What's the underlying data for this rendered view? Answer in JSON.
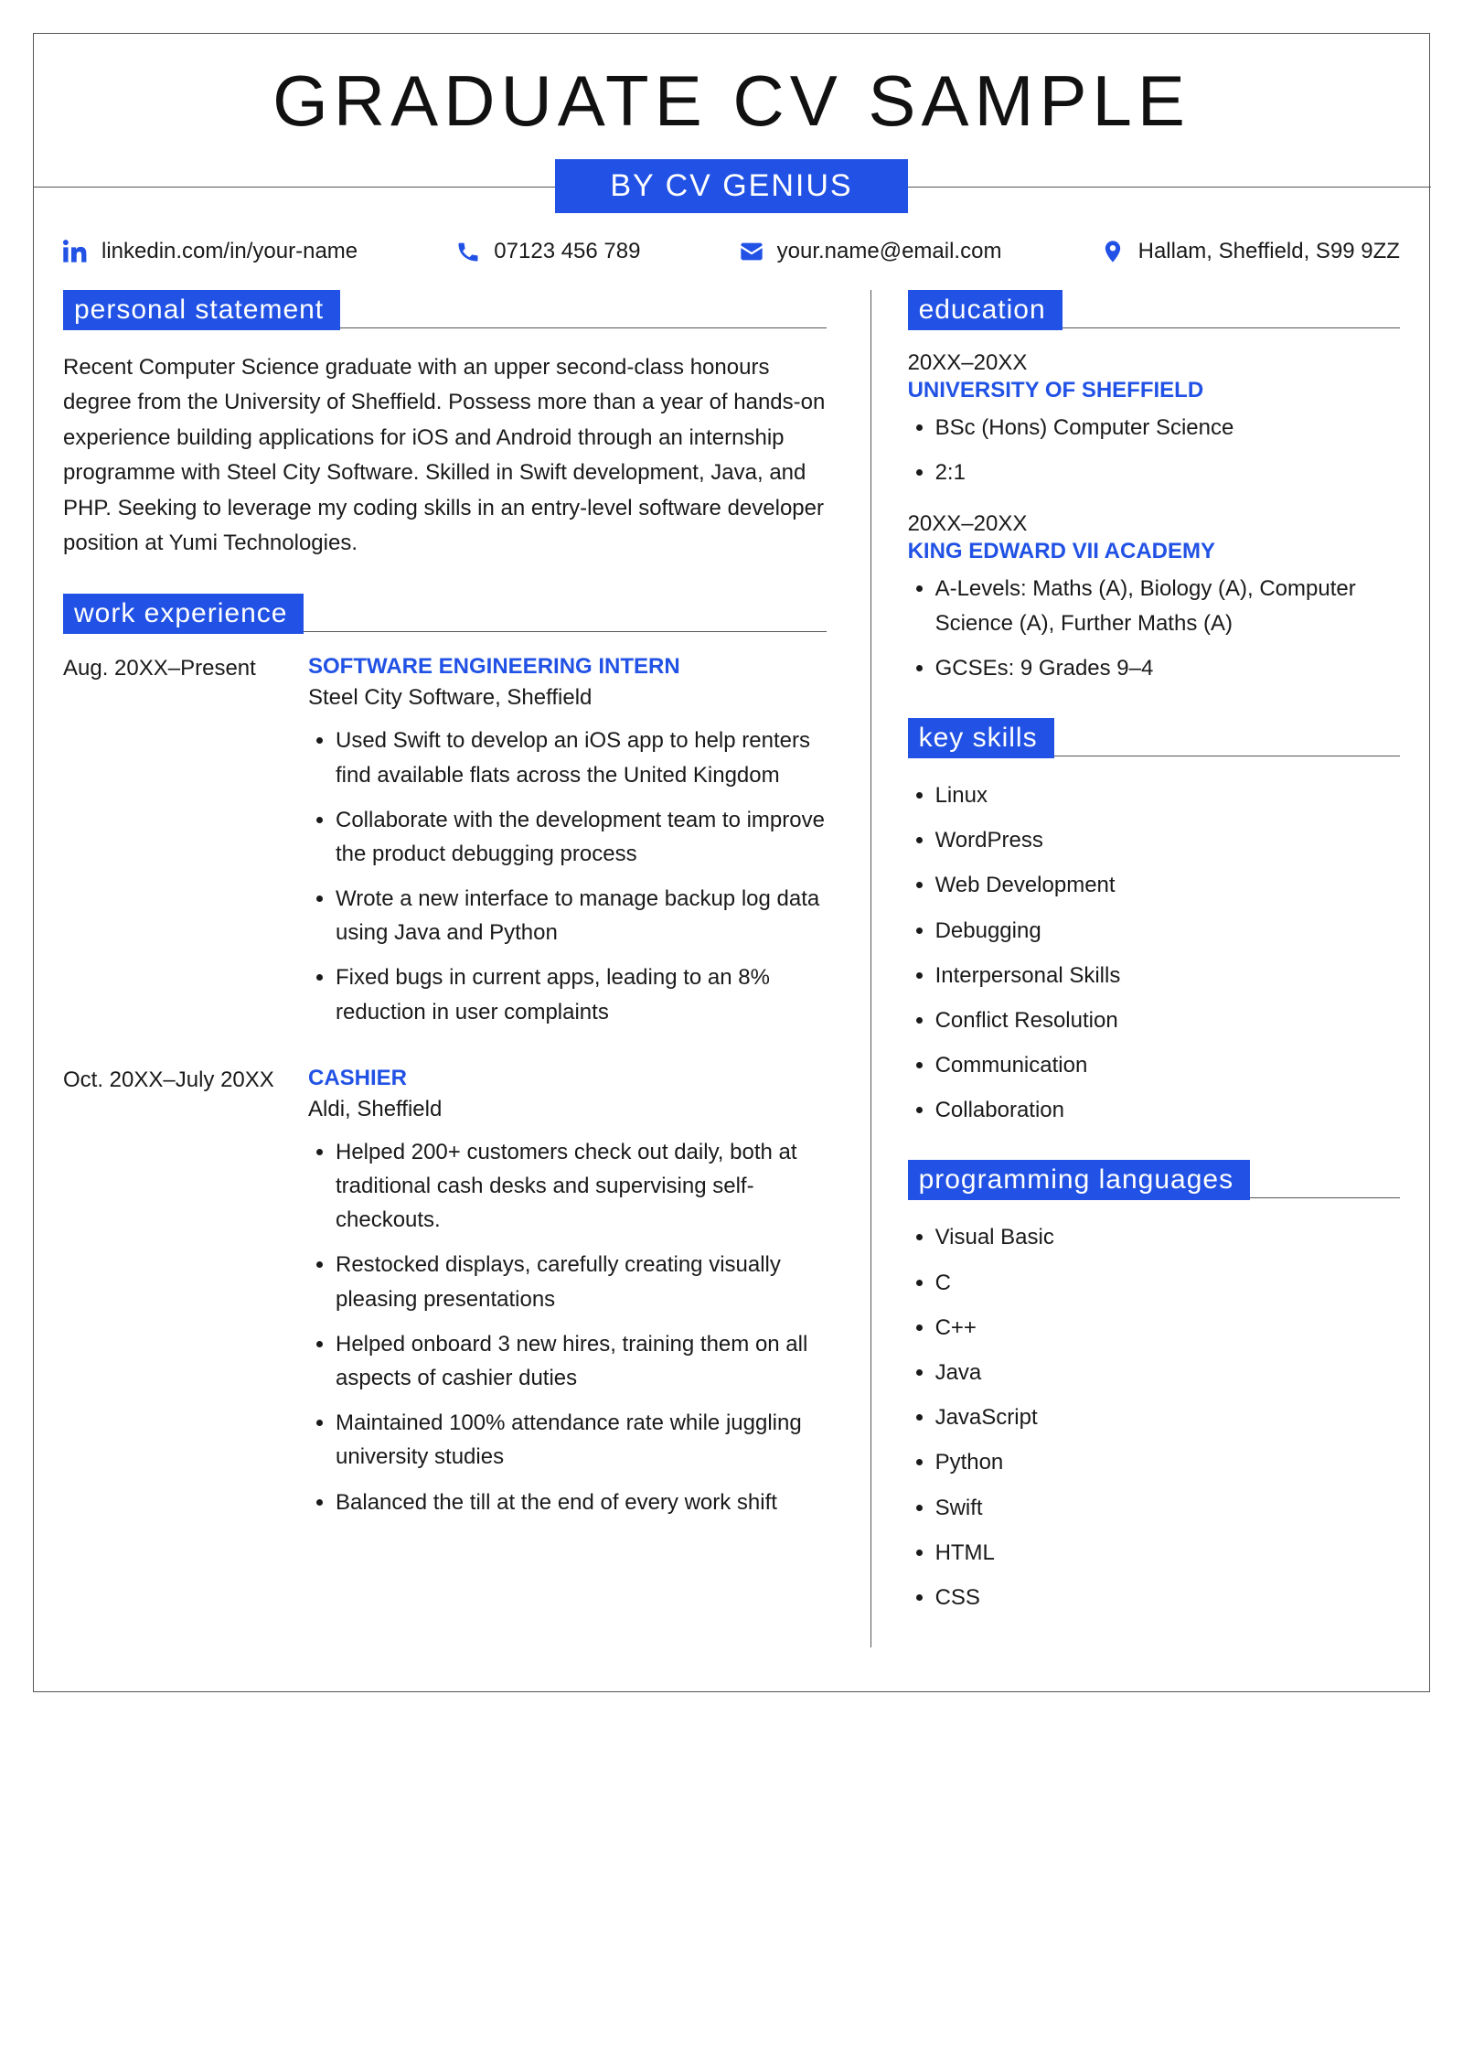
{
  "colors": {
    "accent": "#2152e5",
    "text": "#1a1a1a",
    "border": "#555555",
    "background": "#ffffff"
  },
  "header": {
    "title": "GRADUATE CV SAMPLE",
    "subtitle": "BY CV GENIUS"
  },
  "contact": {
    "linkedin": "linkedin.com/in/your-name",
    "phone": "07123 456 789",
    "email": "your.name@email.com",
    "location": "Hallam, Sheffield, S99 9ZZ"
  },
  "sections": {
    "personal_statement": {
      "heading": "personal statement",
      "body": "Recent Computer Science graduate with an upper second-class honours degree from the University of Sheffield. Possess more than a year of hands-on experience building applications for iOS and Android through an internship programme with Steel City Software. Skilled in Swift development, Java, and PHP. Seeking to leverage my coding skills in an entry-level software developer position at Yumi Technologies."
    },
    "work_experience": {
      "heading": "work experience",
      "entries": [
        {
          "date_range": "Aug. 20XX–Present",
          "title": "SOFTWARE ENGINEERING INTERN",
          "subtitle": "Steel City Software, Sheffield",
          "bullets": [
            "Used Swift to develop an iOS app to help renters find available flats across the United Kingdom",
            "Collaborate with the development team to improve the product debugging process",
            "Wrote a new interface to manage backup log data using Java and Python",
            "Fixed bugs in current apps, leading to an 8% reduction in user complaints"
          ]
        },
        {
          "date_range": "Oct. 20XX–July 20XX",
          "title": "CASHIER",
          "subtitle": "Aldi, Sheffield",
          "bullets": [
            "Helped 200+ customers check out daily, both at traditional cash desks and supervising self-checkouts.",
            "Restocked displays, carefully creating visually pleasing presentations",
            "Helped onboard 3 new hires, training them on all aspects of cashier duties",
            "Maintained 100% attendance rate while juggling university studies",
            "Balanced the till at the end of every work shift"
          ]
        }
      ]
    },
    "education": {
      "heading": "education",
      "entries": [
        {
          "date_range": "20XX–20XX",
          "title": "UNIVERSITY OF SHEFFIELD",
          "bullets": [
            "BSc (Hons) Computer Science",
            "2:1"
          ]
        },
        {
          "date_range": "20XX–20XX",
          "title": "KING EDWARD VII ACADEMY",
          "bullets": [
            "A-Levels: Maths (A), Biology (A), Computer Science (A), Further Maths (A)",
            "GCSEs: 9 Grades 9–4"
          ]
        }
      ]
    },
    "key_skills": {
      "heading": "key skills",
      "items": [
        "Linux",
        "WordPress",
        "Web Development",
        "Debugging",
        "Interpersonal Skills",
        "Conflict Resolution",
        "Communication",
        "Collaboration"
      ]
    },
    "programming_languages": {
      "heading": "programming languages",
      "items": [
        "Visual Basic",
        "C",
        "C++",
        "Java",
        "JavaScript",
        "Python",
        "Swift",
        "HTML",
        "CSS"
      ]
    }
  }
}
